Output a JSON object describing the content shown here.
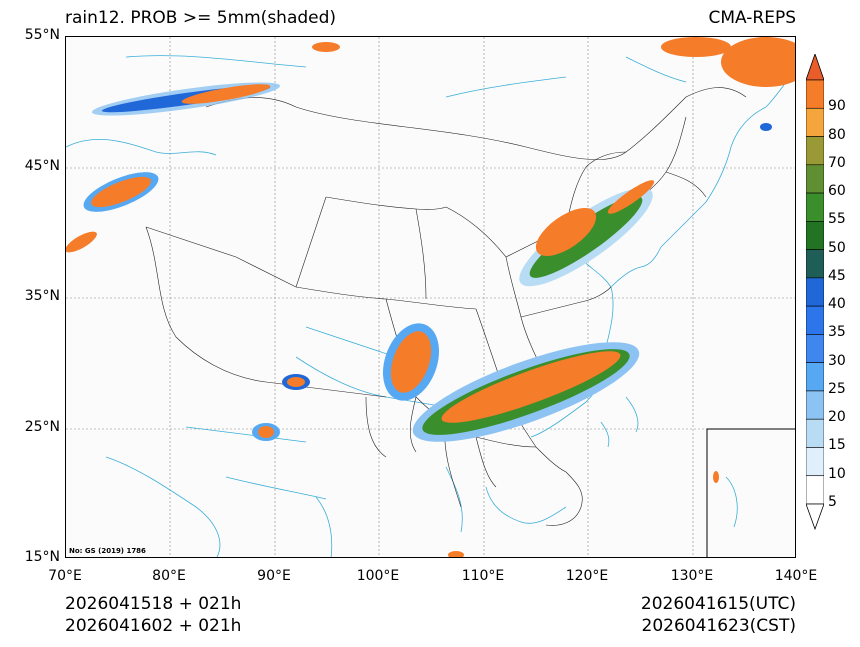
{
  "header": {
    "title_left": "rain12. PROB >= 5mm(shaded)",
    "title_right": "CMA-REPS"
  },
  "map": {
    "lat_labels": [
      "55°N",
      "45°N",
      "35°N",
      "25°N",
      "15°N"
    ],
    "lon_labels": [
      "70°E",
      "80°E",
      "90°E",
      "100°E",
      "110°E",
      "120°E",
      "130°E",
      "140°E"
    ],
    "gs_note": "No: GS (2019) 1786"
  },
  "colorbar": {
    "ticks": [
      "90",
      "80",
      "70",
      "60",
      "55",
      "50",
      "45",
      "40",
      "35",
      "30",
      "25",
      "20",
      "15",
      "10",
      "5"
    ],
    "colors": [
      "#e85d2a",
      "#f57c29",
      "#f4a53b",
      "#999a36",
      "#5f8f32",
      "#3a8e2c",
      "#237325",
      "#1f5e56",
      "#2067d8",
      "#2d75ea",
      "#3f86ef",
      "#57a8f3",
      "#8cc3f2",
      "#b9dcf5",
      "#dfeffb",
      "#ffffff"
    ]
  },
  "footer": {
    "left_line1": "2026041518  +  021h",
    "left_line2": "2026041602  +  021h",
    "right_line1": "2026041615(UTC)",
    "right_line2": "2026041623(CST)"
  }
}
